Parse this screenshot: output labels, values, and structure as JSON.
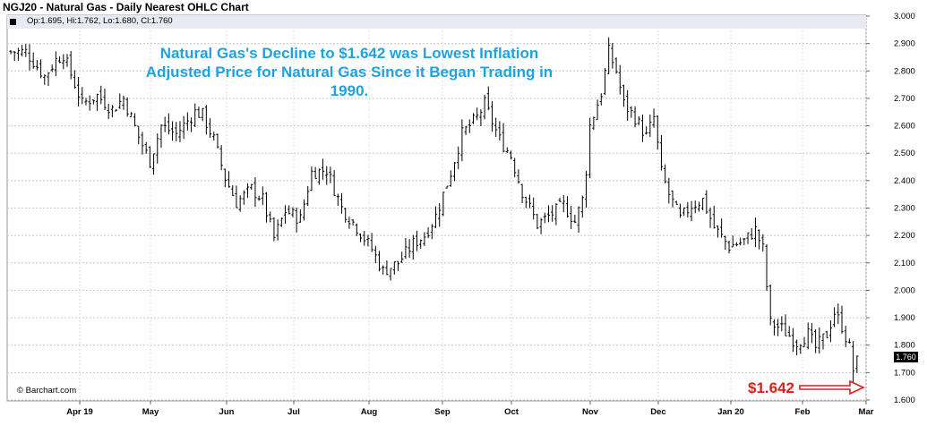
{
  "chart_title": "NGJ20 - Natural Gas - Daily Nearest OHLC Chart",
  "ohlc_readout": "Op:1.695, Hi:1.762, Lo:1.680, Cl:1.760",
  "annotation": "Natural Gas's Decline to $1.642 was Lowest Inflation Adjusted Price for Natural Gas Since it Began Trading in 1990.",
  "watermark": "© Barchart.com",
  "callout_label": "$1.642",
  "last_price_label": "1.760",
  "colors": {
    "bars": "#000000",
    "annotation": "#1ea3e0",
    "callout": "#e21b1b",
    "grid": "#c8c8c8",
    "header_band": "#e9e9f3"
  },
  "chart_data": {
    "type": "ohlc",
    "title": "NGJ20 - Natural Gas - Daily Nearest OHLC Chart",
    "xlabel": "",
    "ylabel": "",
    "ylim": [
      1.6,
      3.0
    ],
    "y_ticks": [
      "1.600",
      "1.700",
      "1.800",
      "1.900",
      "2.000",
      "2.100",
      "2.200",
      "2.300",
      "2.400",
      "2.500",
      "2.600",
      "2.700",
      "2.800",
      "2.900",
      "3.000"
    ],
    "x_ticks": [
      "Apr 19",
      "May",
      "Jun",
      "Jul",
      "Aug",
      "Sep",
      "Oct",
      "Nov",
      "Dec",
      "Jan 20",
      "Feb",
      "Mar"
    ],
    "grid": true,
    "price_path": [
      [
        0,
        2.87
      ],
      [
        4,
        2.87
      ],
      [
        9,
        2.78
      ],
      [
        12,
        2.84
      ],
      [
        14,
        2.86
      ],
      [
        19,
        2.68
      ],
      [
        23,
        2.71
      ],
      [
        27,
        2.66
      ],
      [
        30,
        2.7
      ],
      [
        34,
        2.56
      ],
      [
        37,
        2.47
      ],
      [
        40,
        2.6
      ],
      [
        44,
        2.57
      ],
      [
        49,
        2.65
      ],
      [
        51,
        2.64
      ],
      [
        54,
        2.55
      ],
      [
        57,
        2.41
      ],
      [
        60,
        2.32
      ],
      [
        64,
        2.37
      ],
      [
        67,
        2.33
      ],
      [
        70,
        2.19
      ],
      [
        73,
        2.29
      ],
      [
        77,
        2.26
      ],
      [
        80,
        2.43
      ],
      [
        84,
        2.44
      ],
      [
        88,
        2.3
      ],
      [
        92,
        2.23
      ],
      [
        96,
        2.15
      ],
      [
        99,
        2.07
      ],
      [
        103,
        2.1
      ],
      [
        107,
        2.17
      ],
      [
        110,
        2.2
      ],
      [
        113,
        2.27
      ],
      [
        117,
        2.43
      ],
      [
        120,
        2.57
      ],
      [
        124,
        2.63
      ],
      [
        126,
        2.68
      ],
      [
        130,
        2.55
      ],
      [
        133,
        2.49
      ],
      [
        136,
        2.36
      ],
      [
        140,
        2.24
      ],
      [
        144,
        2.28
      ],
      [
        147,
        2.31
      ],
      [
        150,
        2.25
      ],
      [
        152,
        2.33
      ],
      [
        153,
        2.44
      ],
      [
        154,
        2.6
      ],
      [
        157,
        2.72
      ],
      [
        159,
        2.87
      ],
      [
        161,
        2.8
      ],
      [
        163,
        2.68
      ],
      [
        166,
        2.63
      ],
      [
        169,
        2.56
      ],
      [
        171,
        2.63
      ],
      [
        173,
        2.43
      ],
      [
        175,
        2.35
      ],
      [
        178,
        2.26
      ],
      [
        181,
        2.31
      ],
      [
        184,
        2.33
      ],
      [
        187,
        2.23
      ],
      [
        191,
        2.16
      ],
      [
        195,
        2.18
      ],
      [
        198,
        2.22
      ],
      [
        200,
        2.15
      ],
      [
        202,
        1.88
      ],
      [
        205,
        1.86
      ],
      [
        209,
        1.81
      ],
      [
        212,
        1.84
      ],
      [
        214,
        1.79
      ],
      [
        217,
        1.84
      ],
      [
        219,
        1.92
      ],
      [
        221,
        1.87
      ],
      [
        223,
        1.79
      ],
      [
        224,
        1.71
      ],
      [
        225,
        1.76
      ]
    ],
    "last": 1.76,
    "low": 1.642,
    "annotation": "Natural Gas's Decline to $1.642 was Lowest Inflation Adjusted Price for Natural Gas Since it Began Trading in 1990.",
    "callout": "$1.642"
  }
}
